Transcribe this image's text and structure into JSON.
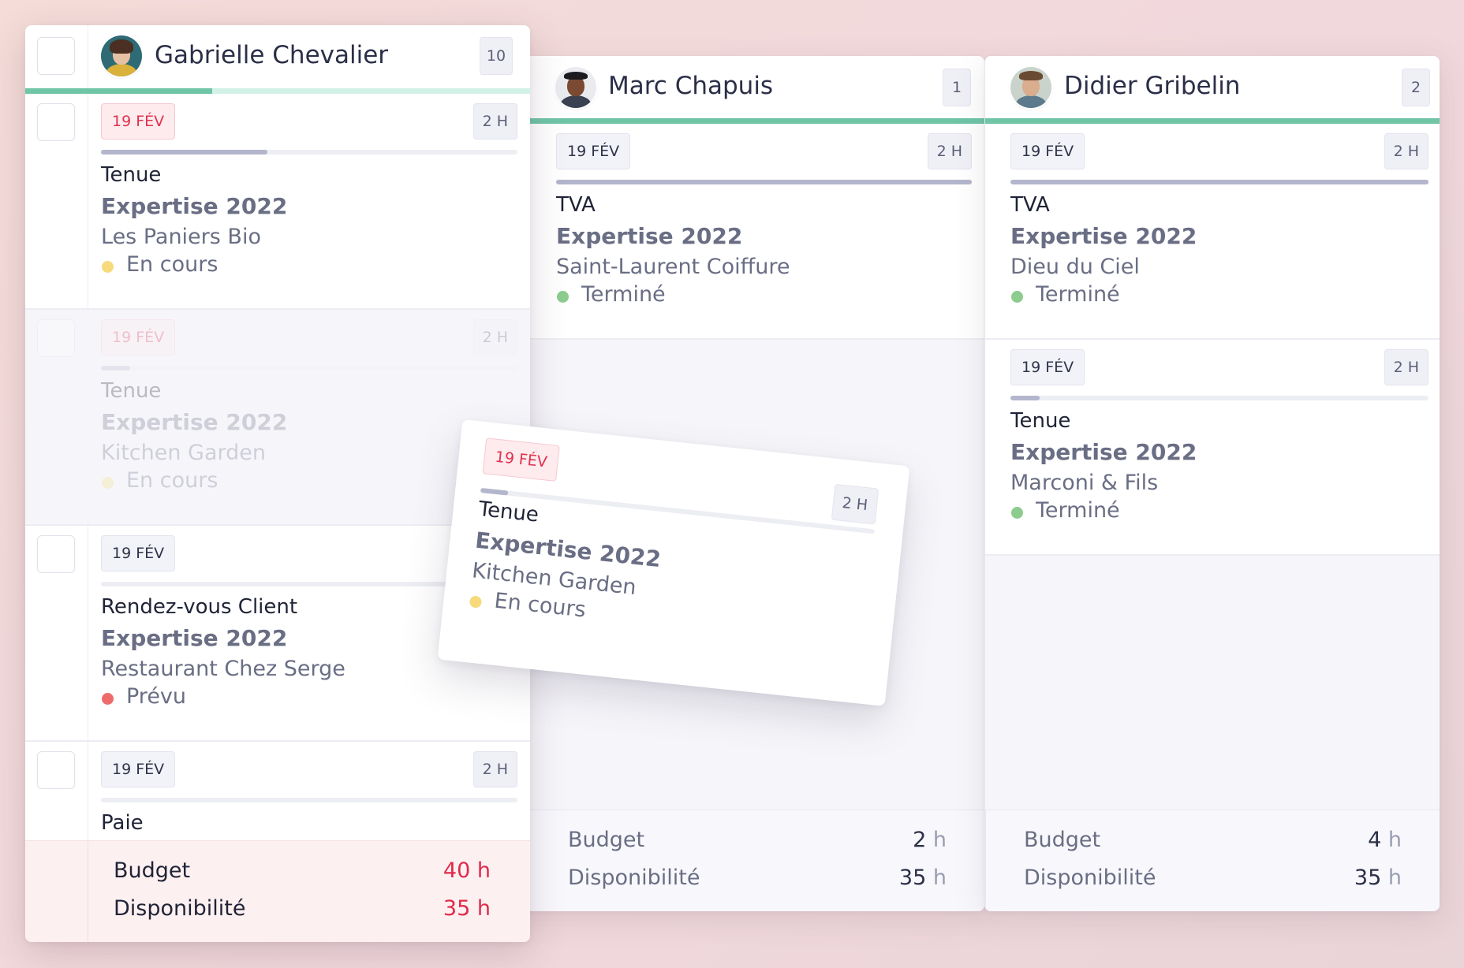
{
  "columns": [
    {
      "id": "gab",
      "person": "Gabrielle Chevalier",
      "count": "10",
      "cards": [
        {
          "date": "19 FÉV",
          "hours": "2 H",
          "type": "Tenue",
          "project": "Expertise 2022",
          "client": "Les Paniers Bio",
          "status": "En cours"
        },
        {
          "date": "19 FÉV",
          "hours": "2 H",
          "type": "Tenue",
          "project": "Expertise 2022",
          "client": "Kitchen Garden",
          "status": "En cours"
        },
        {
          "date": "19 FÉV",
          "hours": "",
          "type": "Rendez-vous Client",
          "project": "Expertise 2022",
          "client": "Restaurant Chez Serge",
          "status": "Prévu"
        },
        {
          "date": "19 FÉV",
          "hours": "2 H",
          "type": "Paie"
        }
      ],
      "footer": {
        "budget_label": "Budget",
        "budget_value": "40",
        "budget_unit": "h",
        "dispo_label": "Disponibilité",
        "dispo_value": "35",
        "dispo_unit": "h"
      }
    },
    {
      "id": "marc",
      "person": "Marc Chapuis",
      "count": "1",
      "cards": [
        {
          "date": "19 FÉV",
          "hours": "2 H",
          "type": "TVA",
          "project": "Expertise 2022",
          "client": "Saint-Laurent Coiffure",
          "status": "Terminé"
        }
      ],
      "footer": {
        "budget_label": "Budget",
        "budget_value": "2",
        "budget_unit": "h",
        "dispo_label": "Disponibilité",
        "dispo_value": "35",
        "dispo_unit": "h"
      }
    },
    {
      "id": "didier",
      "person": "Didier Gribelin",
      "count": "2",
      "cards": [
        {
          "date": "19 FÉV",
          "hours": "2 H",
          "type": "TVA",
          "project": "Expertise 2022",
          "client": "Dieu du Ciel",
          "status": "Terminé"
        },
        {
          "date": "19 FÉV",
          "hours": "2 H",
          "type": "Tenue",
          "project": "Expertise 2022",
          "client": "Marconi & Fils",
          "status": "Terminé"
        }
      ],
      "footer": {
        "budget_label": "Budget",
        "budget_value": "4",
        "budget_unit": "h",
        "dispo_label": "Disponibilité",
        "dispo_value": "35",
        "dispo_unit": "h"
      }
    }
  ],
  "dragging_card": {
    "date": "19 FÉV",
    "hours": "2 H",
    "type": "Tenue",
    "project": "Expertise 2022",
    "client": "Kitchen Garden",
    "status": "En cours"
  },
  "colors": {
    "en_cours": "#f6da7b",
    "termine": "#8ccc8e",
    "prevu": "#ee6b6b",
    "late_date": "#e1314e",
    "progress_green": "#6fc5a6"
  },
  "progress": {
    "gab_column": 0.37,
    "marc_column": 1.0,
    "didier_column": 1.0,
    "gab_card1": 0.4,
    "gab_card2": 0.07,
    "marc_card1": 1.0,
    "didier_card1": 1.0,
    "didier_card2": 0.07,
    "drag_card": 0.07
  }
}
